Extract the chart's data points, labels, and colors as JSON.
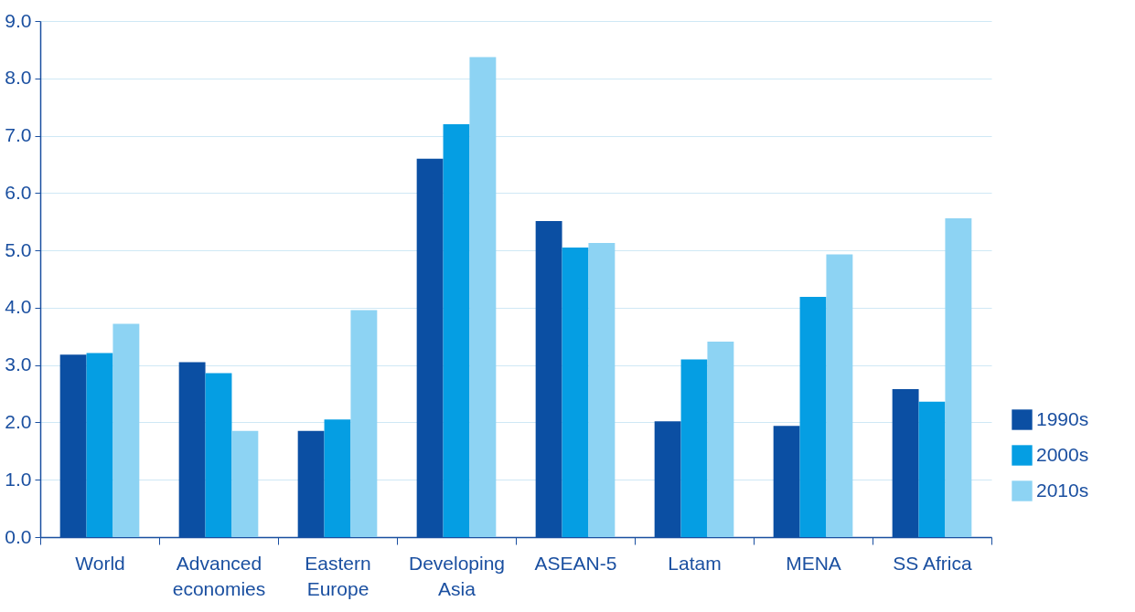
{
  "chart_data": {
    "type": "bar",
    "categories": [
      "World",
      "Advanced economies",
      "Eastern Europe",
      "Developing Asia",
      "ASEAN-5",
      "Latam",
      "MENA",
      "SS Africa"
    ],
    "series": [
      {
        "name": "1990s",
        "color": "#0b4fa3",
        "values": [
          3.18,
          3.05,
          1.85,
          6.6,
          5.51,
          2.02,
          1.94,
          2.58
        ]
      },
      {
        "name": "2000s",
        "color": "#059ee3",
        "values": [
          3.21,
          2.86,
          2.05,
          7.2,
          5.05,
          3.1,
          4.19,
          2.36
        ]
      },
      {
        "name": "2010s",
        "color": "#8dd3f3",
        "values": [
          3.72,
          1.85,
          3.96,
          8.37,
          5.13,
          3.41,
          4.93,
          5.56
        ]
      }
    ],
    "ylim": [
      0,
      9
    ],
    "yticks": [
      {
        "value": 0,
        "label": "0.0"
      },
      {
        "value": 1,
        "label": "1.0"
      },
      {
        "value": 2,
        "label": "2.0"
      },
      {
        "value": 3,
        "label": "3.0"
      },
      {
        "value": 4,
        "label": "4.0"
      },
      {
        "value": 5,
        "label": "5.0"
      },
      {
        "value": 6,
        "label": "6.0"
      },
      {
        "value": 7,
        "label": "7.0"
      },
      {
        "value": 8,
        "label": "8.0"
      },
      {
        "value": 9,
        "label": "9.0"
      }
    ],
    "grid": "y",
    "legend": "bottom right"
  }
}
